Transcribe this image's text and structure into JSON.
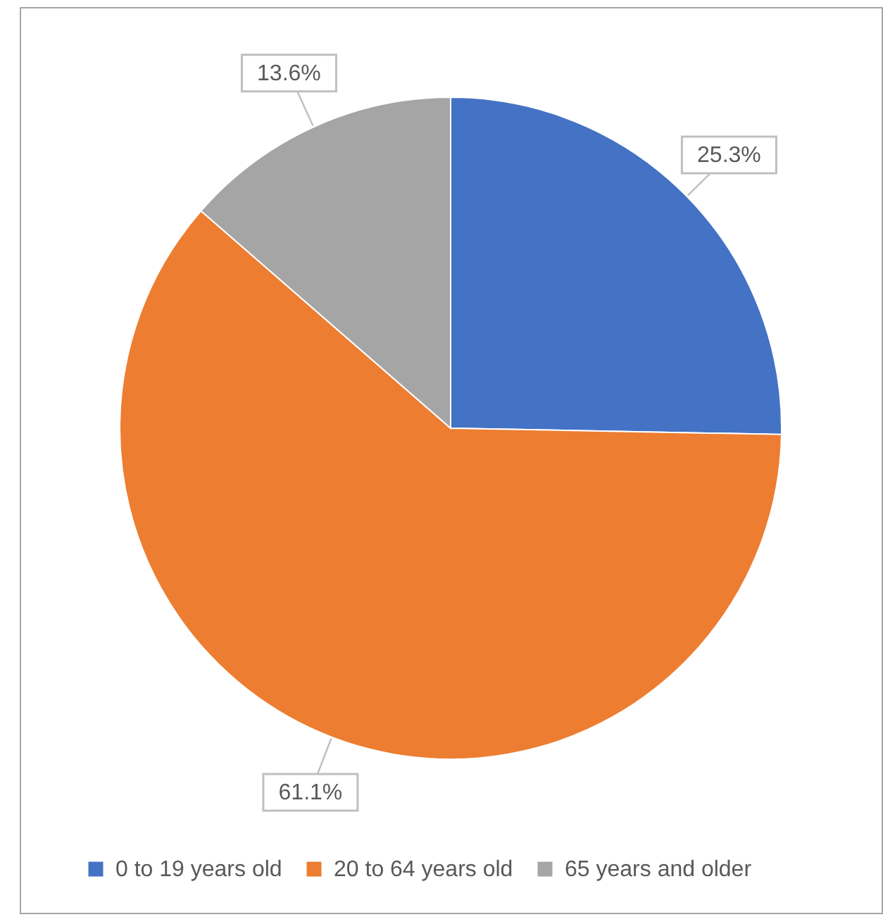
{
  "chart_data": {
    "type": "pie",
    "categories": [
      "0 to 19 years old",
      "20 to 64 years old",
      "65 years and older"
    ],
    "values": [
      25.3,
      61.1,
      13.6
    ],
    "colors": [
      "#4472c4",
      "#ed7d31",
      "#a5a5a5"
    ],
    "value_labels": [
      "25.3%",
      "61.1%",
      "13.6%"
    ],
    "legend": "bottom"
  }
}
